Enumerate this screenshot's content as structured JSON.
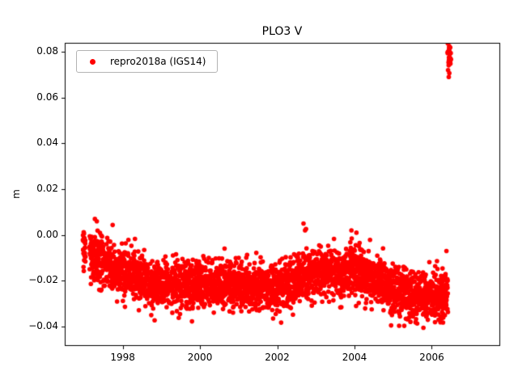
{
  "window": {
    "background": "#ffffff"
  },
  "chart_data": {
    "type": "scatter",
    "title": "PLO3 V",
    "xlabel": "",
    "ylabel": "m",
    "xlim": [
      1996.5,
      2007.75
    ],
    "ylim": [
      -0.0481,
      0.0839
    ],
    "xticks": [
      1998,
      2000,
      2002,
      2004,
      2006
    ],
    "xtick_labels": [
      "1998",
      "2000",
      "2002",
      "2004",
      "2006"
    ],
    "yticks": [
      -0.04,
      -0.02,
      0.0,
      0.02,
      0.04,
      0.06,
      0.08
    ],
    "ytick_labels": [
      "−0.04",
      "−0.02",
      "0.00",
      "0.02",
      "0.04",
      "0.06",
      "0.08"
    ],
    "grid": false,
    "legend_position": "upper-left",
    "axis_color": "#000000",
    "series": [
      {
        "name": "repro2018a (IGS14)",
        "color": "#ff0000",
        "marker": "circle",
        "marker_radius_px": 2.8,
        "main_band": {
          "seed": 20181,
          "n_points": 3300,
          "x_start": 1996.97,
          "x_end": 2006.42,
          "gaps": [
            [
              1997.04,
              1997.14
            ]
          ],
          "noise_std": 0.0053,
          "y_clip": [
            -0.0405,
            0.0085
          ],
          "baseline": [
            [
              1996.97,
              -0.004
            ],
            [
              1997.15,
              -0.008
            ],
            [
              1997.45,
              -0.011
            ],
            [
              1997.8,
              -0.014
            ],
            [
              1998.15,
              -0.016
            ],
            [
              1998.6,
              -0.02
            ],
            [
              1999.1,
              -0.022
            ],
            [
              1999.6,
              -0.021
            ],
            [
              2000.1,
              -0.021
            ],
            [
              2000.6,
              -0.022
            ],
            [
              2001.1,
              -0.022
            ],
            [
              2001.6,
              -0.023
            ],
            [
              2002.1,
              -0.022
            ],
            [
              2002.6,
              -0.019
            ],
            [
              2003.0,
              -0.016
            ],
            [
              2003.5,
              -0.017
            ],
            [
              2004.0,
              -0.016
            ],
            [
              2004.4,
              -0.018
            ],
            [
              2004.8,
              -0.022
            ],
            [
              2005.2,
              -0.025
            ],
            [
              2005.6,
              -0.027
            ],
            [
              2006.0,
              -0.027
            ],
            [
              2006.42,
              -0.026
            ]
          ]
        },
        "outlier_cluster": {
          "seed": 77,
          "n_points": 38,
          "x_start": 2006.41,
          "x_end": 2006.5,
          "y_mean": 0.0785,
          "y_std": 0.0033,
          "y_clip": [
            0.069,
            0.0843
          ]
        },
        "extra_points": [
          [
            1997.28,
            0.007
          ],
          [
            1997.33,
            0.006
          ],
          [
            2002.68,
            0.005
          ],
          [
            2002.72,
            0.002
          ],
          [
            2003.92,
            0.002
          ],
          [
            2004.05,
            0.001
          ],
          [
            2006.38,
            -0.007
          ],
          [
            2006.44,
            0.069
          ]
        ]
      }
    ]
  }
}
